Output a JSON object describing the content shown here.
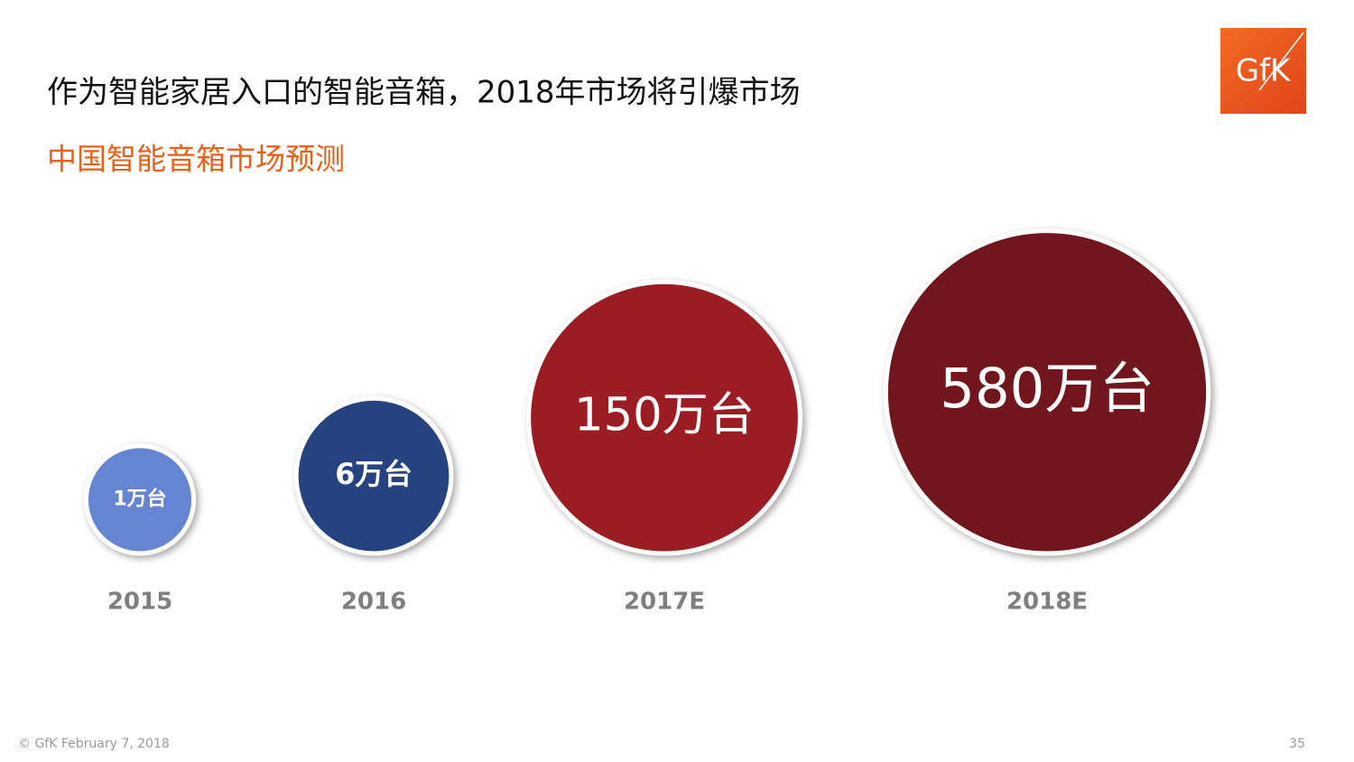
{
  "heading": "作为智能家居入口的智能音箱，2018年市场将引爆市场",
  "logo": "GfK",
  "footer": {
    "copyright": "© GfK February 7, 2018",
    "page": "35"
  },
  "chart_data": {
    "type": "bubble",
    "title": "中国智能音箱市场预测",
    "categories": [
      "2015",
      "2016",
      "2017E",
      "2018E"
    ],
    "values": [
      1,
      6,
      150,
      580
    ],
    "value_labels": [
      "1万台",
      "6万台",
      "150万台",
      "580万台"
    ],
    "colors": [
      "#6584d2",
      "#27427f",
      "#9b1f24",
      "#6f171c"
    ]
  }
}
